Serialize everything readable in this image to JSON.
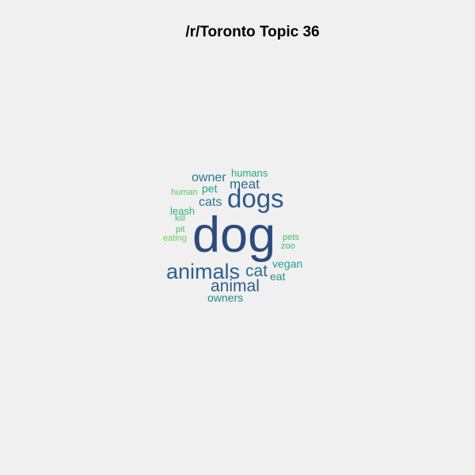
{
  "title": "/r/Toronto Topic 36",
  "words": [
    {
      "text": "dog",
      "color": "#2d4a7d"
    },
    {
      "text": "dogs",
      "color": "#2f5a8a"
    },
    {
      "text": "animals",
      "color": "#2f5f8c"
    },
    {
      "text": "animal",
      "color": "#2f5f8c"
    },
    {
      "text": "cat",
      "color": "#2f6a8d"
    },
    {
      "text": "meat",
      "color": "#2f6a8d"
    },
    {
      "text": "owner",
      "color": "#2a768d"
    },
    {
      "text": "cats",
      "color": "#2a768d"
    },
    {
      "text": "owners",
      "color": "#21888c"
    },
    {
      "text": "eat",
      "color": "#21918c"
    },
    {
      "text": "vegan",
      "color": "#22a386"
    },
    {
      "text": "pet",
      "color": "#22a386"
    },
    {
      "text": "humans",
      "color": "#27a882"
    },
    {
      "text": "leash",
      "color": "#35b079"
    },
    {
      "text": "zoo",
      "color": "#45b86f"
    },
    {
      "text": "pets",
      "color": "#45b86f"
    },
    {
      "text": "kill",
      "color": "#4fbd69"
    },
    {
      "text": "pit",
      "color": "#4fbd69"
    },
    {
      "text": "human",
      "color": "#5dc462"
    },
    {
      "text": "eating",
      "color": "#6ccd5a"
    }
  ]
}
